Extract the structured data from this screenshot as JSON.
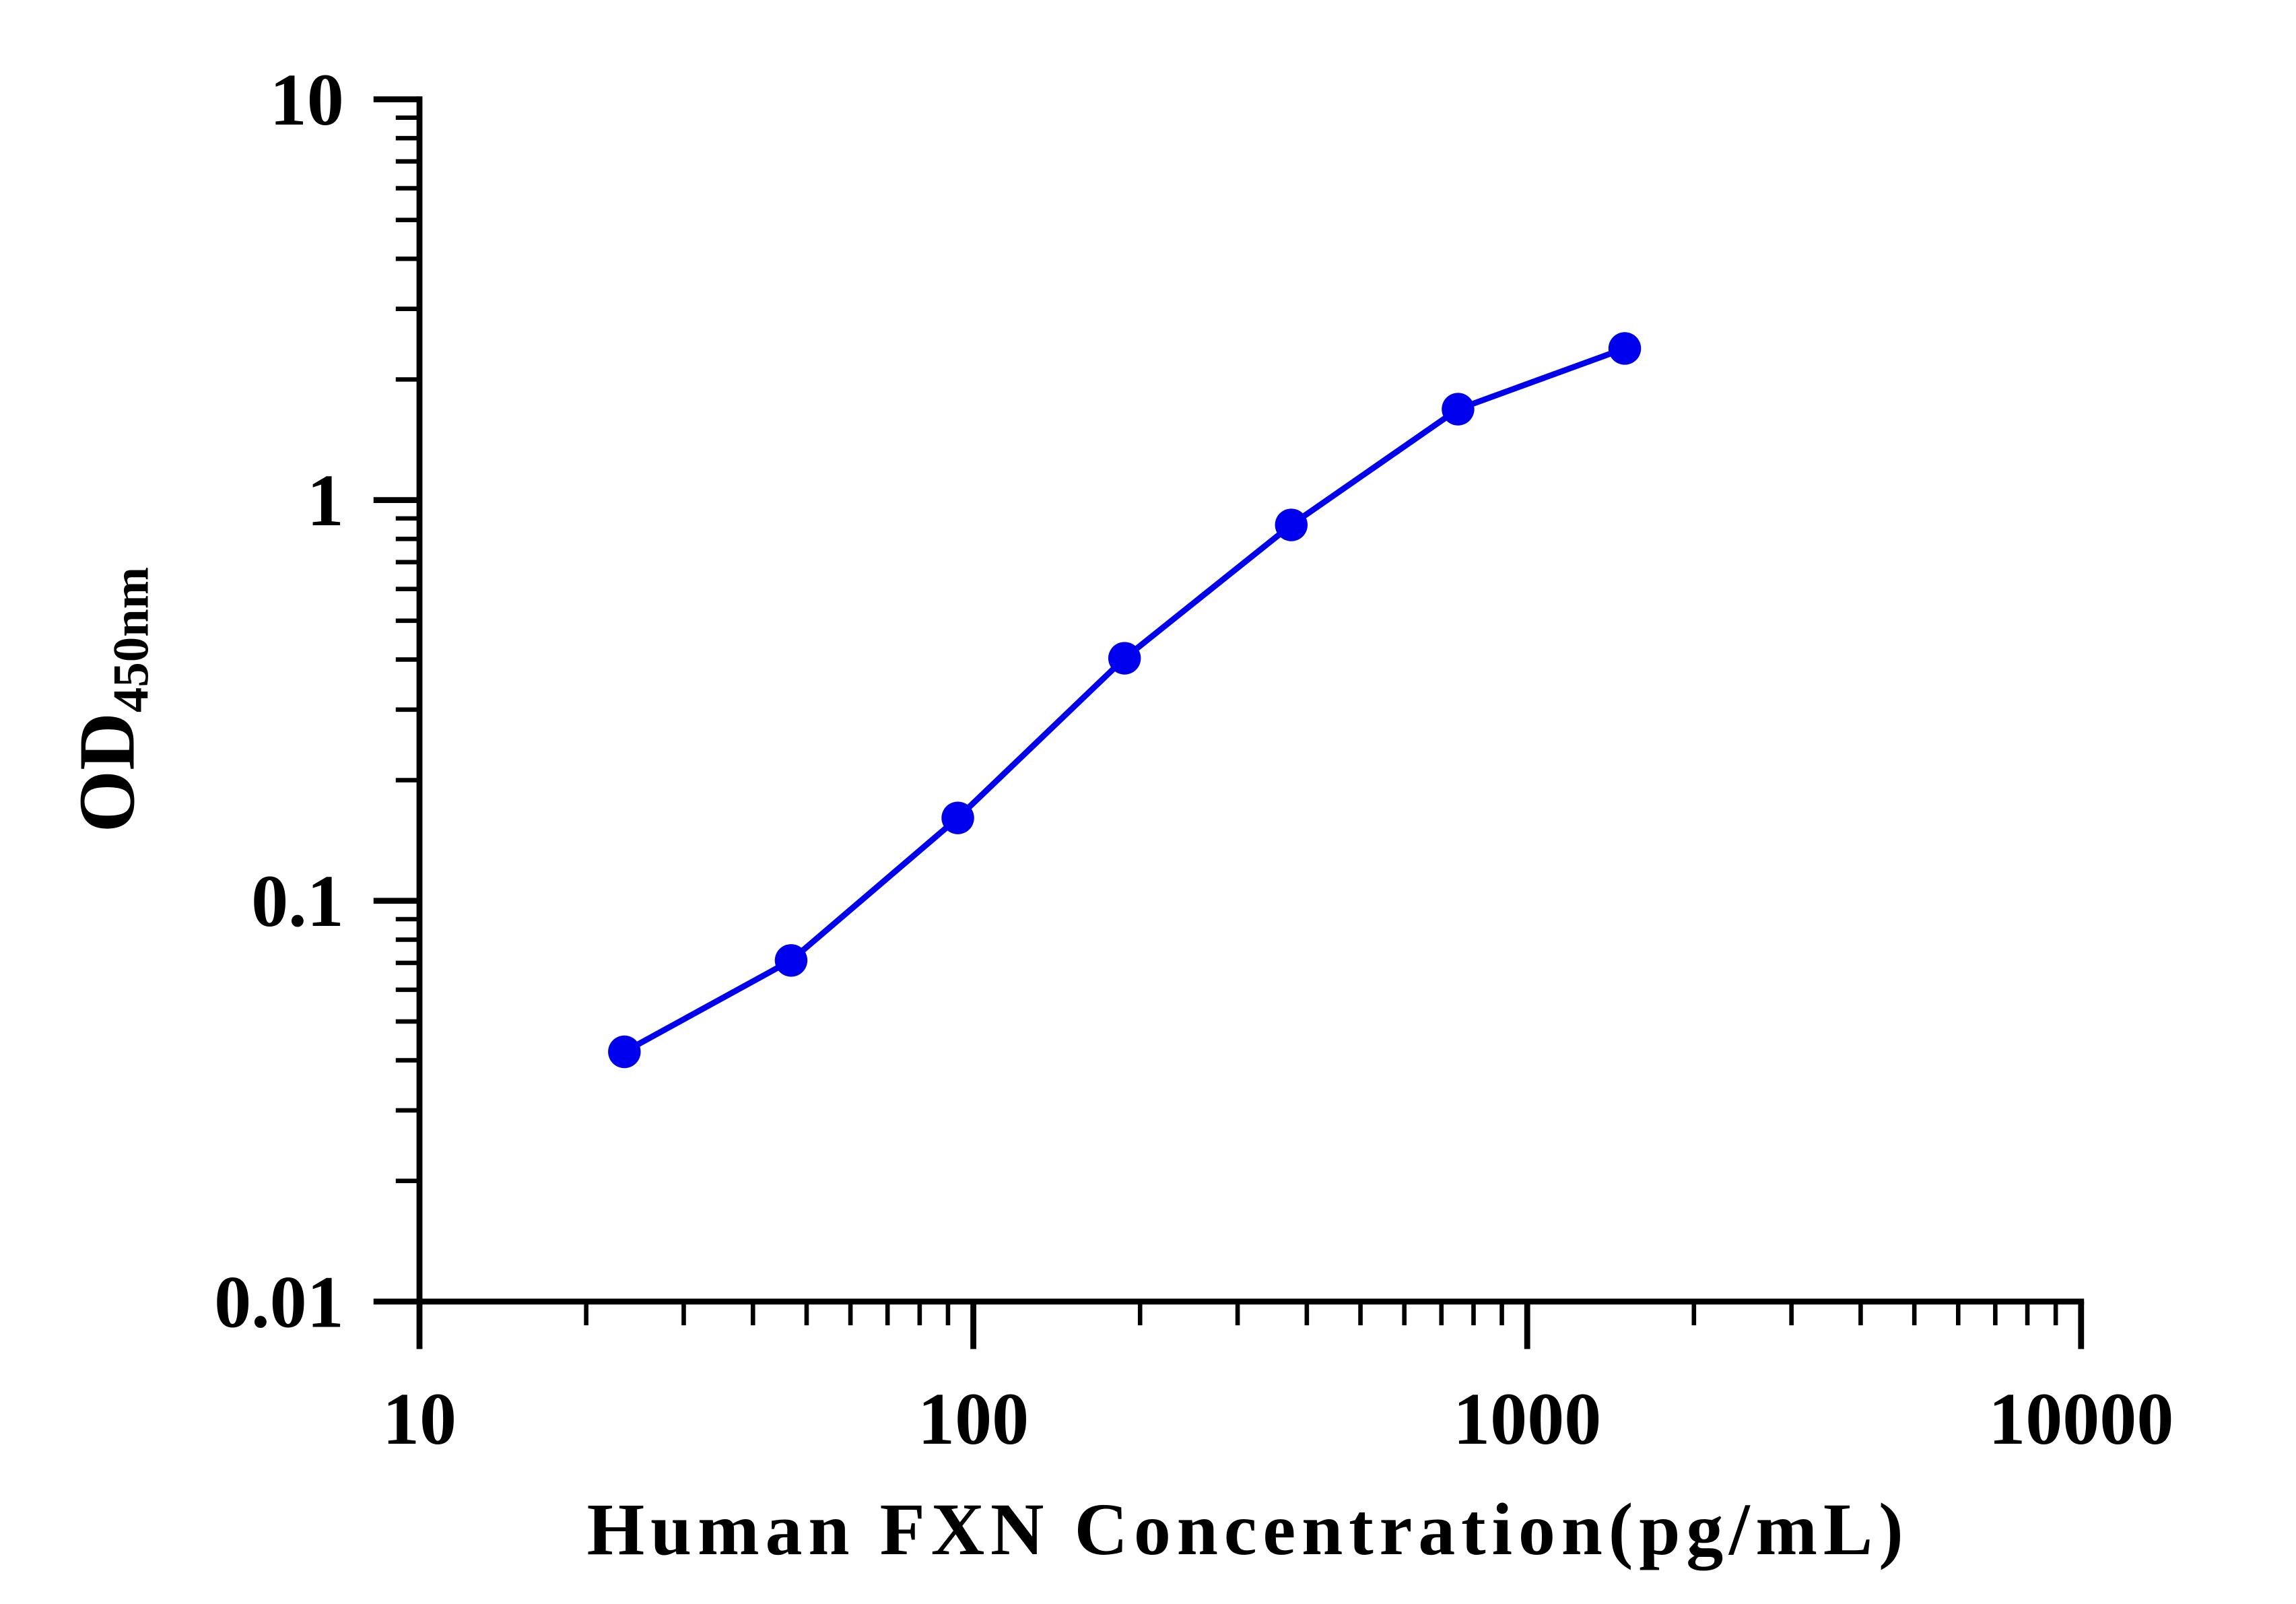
{
  "chart_data": {
    "type": "line",
    "xlabel": "Human FXN Concentration(pg/mL)",
    "ylabel": "OD",
    "ylabel_subscript": "450nm",
    "x": [
      23.44,
      46.88,
      93.75,
      187.5,
      375,
      750,
      1500
    ],
    "series": [
      {
        "color": "#0000ee",
        "values": [
          0.042,
          0.071,
          0.161,
          0.403,
          0.867,
          1.686,
          2.39
        ]
      }
    ],
    "xscale": "log",
    "yscale": "log",
    "xlim": [
      10,
      10000
    ],
    "ylim": [
      0.01,
      10
    ],
    "xticks": [
      10,
      100,
      1000,
      10000
    ],
    "yticks": [
      0.01,
      0.1,
      1,
      10
    ],
    "grid": false
  }
}
